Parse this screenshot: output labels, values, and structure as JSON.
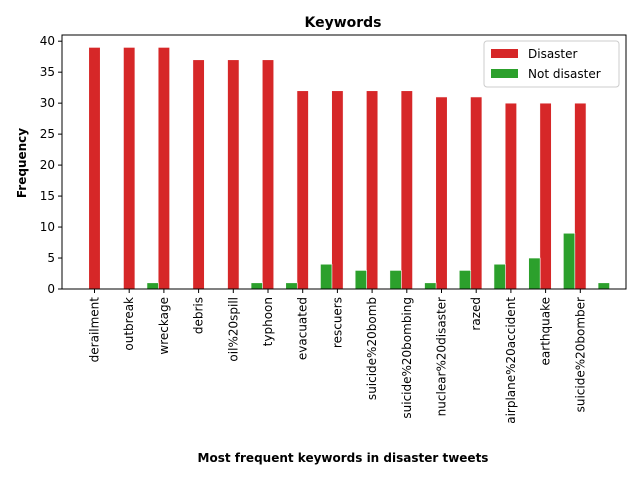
{
  "chart_data": {
    "type": "bar",
    "title": "Keywords",
    "xlabel": "Most frequent keywords in disaster tweets",
    "ylabel": "Frequency",
    "categories": [
      "derailment",
      "outbreak",
      "wreckage",
      "debris",
      "oil%20spill",
      "typhoon",
      "evacuated",
      "rescuers",
      "suicide%20bomb",
      "suicide%20bombing",
      "nuclear%20disaster",
      "razed",
      "airplane%20accident",
      "earthquake",
      "suicide%20bomber"
    ],
    "series": [
      {
        "name": "Disaster",
        "color": "#d62728",
        "values": [
          39,
          39,
          39,
          37,
          37,
          37,
          32,
          32,
          32,
          32,
          31,
          31,
          30,
          30,
          30
        ]
      },
      {
        "name": "Not disaster",
        "color": "#2ca02c",
        "values": [
          0,
          1,
          0,
          0,
          1,
          1,
          4,
          3,
          3,
          1,
          3,
          4,
          5,
          9,
          1
        ]
      }
    ],
    "ylim": [
      0,
      41
    ],
    "yticks": [
      0,
      5,
      10,
      15,
      20,
      25,
      30,
      35,
      40
    ],
    "grid": false,
    "legend_position": "top-right"
  }
}
